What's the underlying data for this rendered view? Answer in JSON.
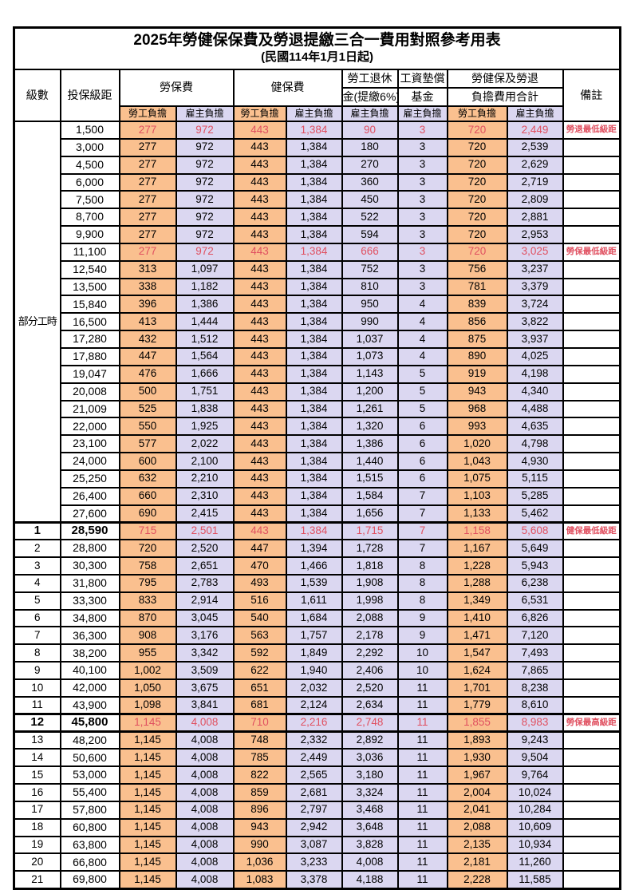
{
  "title": {
    "line1": "2025年勞健保保費及勞退提繳三合一費用對照參考用表",
    "line2": "(民國114年1月1日起)"
  },
  "header": {
    "level": "級數",
    "bracket": "投保級距",
    "labor_fee": "勞保費",
    "health_fee": "健保費",
    "pension_line1": "勞工退休",
    "pension_line2": "金(提繳6%)",
    "wage_fund_line1": "工資墊償",
    "wage_fund_line2": "基金",
    "total_line1": "勞健保及勞退",
    "total_line2": "負擔費用合計",
    "remark": "備註",
    "employee": "勞工負擔",
    "employer": "雇主負擔"
  },
  "part_time_label": "部分工時",
  "colors": {
    "employee_bg": "#FAC08F",
    "employer_bg": "#DBD7F1",
    "highlight_text": "#E05060"
  },
  "rows": [
    {
      "level": "",
      "bracket": "1,500",
      "values": [
        "277",
        "972",
        "443",
        "1,384",
        "90",
        "3",
        "720",
        "2,449"
      ],
      "note": "勞退最低級距",
      "highlight": true,
      "bold": false,
      "thick_top": false,
      "thick_bottom": false
    },
    {
      "level": "",
      "bracket": "3,000",
      "values": [
        "277",
        "972",
        "443",
        "1,384",
        "180",
        "3",
        "720",
        "2,539"
      ],
      "note": "",
      "highlight": false,
      "bold": false,
      "thick_top": false,
      "thick_bottom": false
    },
    {
      "level": "",
      "bracket": "4,500",
      "values": [
        "277",
        "972",
        "443",
        "1,384",
        "270",
        "3",
        "720",
        "2,629"
      ],
      "note": "",
      "highlight": false,
      "bold": false,
      "thick_top": false,
      "thick_bottom": false
    },
    {
      "level": "",
      "bracket": "6,000",
      "values": [
        "277",
        "972",
        "443",
        "1,384",
        "360",
        "3",
        "720",
        "2,719"
      ],
      "note": "",
      "highlight": false,
      "bold": false,
      "thick_top": false,
      "thick_bottom": false
    },
    {
      "level": "",
      "bracket": "7,500",
      "values": [
        "277",
        "972",
        "443",
        "1,384",
        "450",
        "3",
        "720",
        "2,809"
      ],
      "note": "",
      "highlight": false,
      "bold": false,
      "thick_top": false,
      "thick_bottom": false
    },
    {
      "level": "",
      "bracket": "8,700",
      "values": [
        "277",
        "972",
        "443",
        "1,384",
        "522",
        "3",
        "720",
        "2,881"
      ],
      "note": "",
      "highlight": false,
      "bold": false,
      "thick_top": false,
      "thick_bottom": false
    },
    {
      "level": "",
      "bracket": "9,900",
      "values": [
        "277",
        "972",
        "443",
        "1,384",
        "594",
        "3",
        "720",
        "2,953"
      ],
      "note": "",
      "highlight": false,
      "bold": false,
      "thick_top": false,
      "thick_bottom": false
    },
    {
      "level": "",
      "bracket": "11,100",
      "values": [
        "277",
        "972",
        "443",
        "1,384",
        "666",
        "3",
        "720",
        "3,025"
      ],
      "note": "勞保最低級距",
      "highlight": true,
      "bold": false,
      "thick_top": false,
      "thick_bottom": false
    },
    {
      "level": "",
      "bracket": "12,540",
      "values": [
        "313",
        "1,097",
        "443",
        "1,384",
        "752",
        "3",
        "756",
        "3,237"
      ],
      "note": "",
      "highlight": false,
      "bold": false,
      "thick_top": false,
      "thick_bottom": false
    },
    {
      "level": "",
      "bracket": "13,500",
      "values": [
        "338",
        "1,182",
        "443",
        "1,384",
        "810",
        "3",
        "781",
        "3,379"
      ],
      "note": "",
      "highlight": false,
      "bold": false,
      "thick_top": false,
      "thick_bottom": false
    },
    {
      "level": "",
      "bracket": "15,840",
      "values": [
        "396",
        "1,386",
        "443",
        "1,384",
        "950",
        "4",
        "839",
        "3,724"
      ],
      "note": "",
      "highlight": false,
      "bold": false,
      "thick_top": false,
      "thick_bottom": false
    },
    {
      "level": "",
      "bracket": "16,500",
      "values": [
        "413",
        "1,444",
        "443",
        "1,384",
        "990",
        "4",
        "856",
        "3,822"
      ],
      "note": "",
      "highlight": false,
      "bold": false,
      "thick_top": false,
      "thick_bottom": false
    },
    {
      "level": "",
      "bracket": "17,280",
      "values": [
        "432",
        "1,512",
        "443",
        "1,384",
        "1,037",
        "4",
        "875",
        "3,937"
      ],
      "note": "",
      "highlight": false,
      "bold": false,
      "thick_top": false,
      "thick_bottom": false
    },
    {
      "level": "",
      "bracket": "17,880",
      "values": [
        "447",
        "1,564",
        "443",
        "1,384",
        "1,073",
        "4",
        "890",
        "4,025"
      ],
      "note": "",
      "highlight": false,
      "bold": false,
      "thick_top": false,
      "thick_bottom": false
    },
    {
      "level": "",
      "bracket": "19,047",
      "values": [
        "476",
        "1,666",
        "443",
        "1,384",
        "1,143",
        "5",
        "919",
        "4,198"
      ],
      "note": "",
      "highlight": false,
      "bold": false,
      "thick_top": false,
      "thick_bottom": false
    },
    {
      "level": "",
      "bracket": "20,008",
      "values": [
        "500",
        "1,751",
        "443",
        "1,384",
        "1,200",
        "5",
        "943",
        "4,340"
      ],
      "note": "",
      "highlight": false,
      "bold": false,
      "thick_top": false,
      "thick_bottom": false
    },
    {
      "level": "",
      "bracket": "21,009",
      "values": [
        "525",
        "1,838",
        "443",
        "1,384",
        "1,261",
        "5",
        "968",
        "4,488"
      ],
      "note": "",
      "highlight": false,
      "bold": false,
      "thick_top": false,
      "thick_bottom": false
    },
    {
      "level": "",
      "bracket": "22,000",
      "values": [
        "550",
        "1,925",
        "443",
        "1,384",
        "1,320",
        "6",
        "993",
        "4,635"
      ],
      "note": "",
      "highlight": false,
      "bold": false,
      "thick_top": false,
      "thick_bottom": false
    },
    {
      "level": "",
      "bracket": "23,100",
      "values": [
        "577",
        "2,022",
        "443",
        "1,384",
        "1,386",
        "6",
        "1,020",
        "4,798"
      ],
      "note": "",
      "highlight": false,
      "bold": false,
      "thick_top": false,
      "thick_bottom": false
    },
    {
      "level": "",
      "bracket": "24,000",
      "values": [
        "600",
        "2,100",
        "443",
        "1,384",
        "1,440",
        "6",
        "1,043",
        "4,930"
      ],
      "note": "",
      "highlight": false,
      "bold": false,
      "thick_top": false,
      "thick_bottom": false
    },
    {
      "level": "",
      "bracket": "25,250",
      "values": [
        "632",
        "2,210",
        "443",
        "1,384",
        "1,515",
        "6",
        "1,075",
        "5,115"
      ],
      "note": "",
      "highlight": false,
      "bold": false,
      "thick_top": false,
      "thick_bottom": false
    },
    {
      "level": "",
      "bracket": "26,400",
      "values": [
        "660",
        "2,310",
        "443",
        "1,384",
        "1,584",
        "7",
        "1,103",
        "5,285"
      ],
      "note": "",
      "highlight": false,
      "bold": false,
      "thick_top": false,
      "thick_bottom": false
    },
    {
      "level": "",
      "bracket": "27,600",
      "values": [
        "690",
        "2,415",
        "443",
        "1,384",
        "1,656",
        "7",
        "1,133",
        "5,462"
      ],
      "note": "",
      "highlight": false,
      "bold": false,
      "thick_top": false,
      "thick_bottom": false
    },
    {
      "level": "1",
      "bracket": "28,590",
      "values": [
        "715",
        "2,501",
        "443",
        "1,384",
        "1,715",
        "7",
        "1,158",
        "5,608"
      ],
      "note": "健保最低級距",
      "highlight": true,
      "bold": true,
      "thick_top": true,
      "thick_bottom": false
    },
    {
      "level": "2",
      "bracket": "28,800",
      "values": [
        "720",
        "2,520",
        "447",
        "1,394",
        "1,728",
        "7",
        "1,167",
        "5,649"
      ],
      "note": "",
      "highlight": false,
      "bold": false,
      "thick_top": false,
      "thick_bottom": false
    },
    {
      "level": "3",
      "bracket": "30,300",
      "values": [
        "758",
        "2,651",
        "470",
        "1,466",
        "1,818",
        "8",
        "1,228",
        "5,943"
      ],
      "note": "",
      "highlight": false,
      "bold": false,
      "thick_top": false,
      "thick_bottom": false
    },
    {
      "level": "4",
      "bracket": "31,800",
      "values": [
        "795",
        "2,783",
        "493",
        "1,539",
        "1,908",
        "8",
        "1,288",
        "6,238"
      ],
      "note": "",
      "highlight": false,
      "bold": false,
      "thick_top": false,
      "thick_bottom": false
    },
    {
      "level": "5",
      "bracket": "33,300",
      "values": [
        "833",
        "2,914",
        "516",
        "1,611",
        "1,998",
        "8",
        "1,349",
        "6,531"
      ],
      "note": "",
      "highlight": false,
      "bold": false,
      "thick_top": false,
      "thick_bottom": false
    },
    {
      "level": "6",
      "bracket": "34,800",
      "values": [
        "870",
        "3,045",
        "540",
        "1,684",
        "2,088",
        "9",
        "1,410",
        "6,826"
      ],
      "note": "",
      "highlight": false,
      "bold": false,
      "thick_top": false,
      "thick_bottom": false
    },
    {
      "level": "7",
      "bracket": "36,300",
      "values": [
        "908",
        "3,176",
        "563",
        "1,757",
        "2,178",
        "9",
        "1,471",
        "7,120"
      ],
      "note": "",
      "highlight": false,
      "bold": false,
      "thick_top": false,
      "thick_bottom": false
    },
    {
      "level": "8",
      "bracket": "38,200",
      "values": [
        "955",
        "3,342",
        "592",
        "1,849",
        "2,292",
        "10",
        "1,547",
        "7,493"
      ],
      "note": "",
      "highlight": false,
      "bold": false,
      "thick_top": false,
      "thick_bottom": false
    },
    {
      "level": "9",
      "bracket": "40,100",
      "values": [
        "1,002",
        "3,509",
        "622",
        "1,940",
        "2,406",
        "10",
        "1,624",
        "7,865"
      ],
      "note": "",
      "highlight": false,
      "bold": false,
      "thick_top": false,
      "thick_bottom": false
    },
    {
      "level": "10",
      "bracket": "42,000",
      "values": [
        "1,050",
        "3,675",
        "651",
        "2,032",
        "2,520",
        "11",
        "1,701",
        "8,238"
      ],
      "note": "",
      "highlight": false,
      "bold": false,
      "thick_top": false,
      "thick_bottom": false
    },
    {
      "level": "11",
      "bracket": "43,900",
      "values": [
        "1,098",
        "3,841",
        "681",
        "2,124",
        "2,634",
        "11",
        "1,779",
        "8,610"
      ],
      "note": "",
      "highlight": false,
      "bold": false,
      "thick_top": false,
      "thick_bottom": false
    },
    {
      "level": "12",
      "bracket": "45,800",
      "values": [
        "1,145",
        "4,008",
        "710",
        "2,216",
        "2,748",
        "11",
        "1,855",
        "8,983"
      ],
      "note": "勞保最高級距",
      "highlight": true,
      "bold": true,
      "thick_top": true,
      "thick_bottom": true
    },
    {
      "level": "13",
      "bracket": "48,200",
      "values": [
        "1,145",
        "4,008",
        "748",
        "2,332",
        "2,892",
        "11",
        "1,893",
        "9,243"
      ],
      "note": "",
      "highlight": false,
      "bold": false,
      "thick_top": false,
      "thick_bottom": false
    },
    {
      "level": "14",
      "bracket": "50,600",
      "values": [
        "1,145",
        "4,008",
        "785",
        "2,449",
        "3,036",
        "11",
        "1,930",
        "9,504"
      ],
      "note": "",
      "highlight": false,
      "bold": false,
      "thick_top": false,
      "thick_bottom": false
    },
    {
      "level": "15",
      "bracket": "53,000",
      "values": [
        "1,145",
        "4,008",
        "822",
        "2,565",
        "3,180",
        "11",
        "1,967",
        "9,764"
      ],
      "note": "",
      "highlight": false,
      "bold": false,
      "thick_top": false,
      "thick_bottom": false
    },
    {
      "level": "16",
      "bracket": "55,400",
      "values": [
        "1,145",
        "4,008",
        "859",
        "2,681",
        "3,324",
        "11",
        "2,004",
        "10,024"
      ],
      "note": "",
      "highlight": false,
      "bold": false,
      "thick_top": false,
      "thick_bottom": false
    },
    {
      "level": "17",
      "bracket": "57,800",
      "values": [
        "1,145",
        "4,008",
        "896",
        "2,797",
        "3,468",
        "11",
        "2,041",
        "10,284"
      ],
      "note": "",
      "highlight": false,
      "bold": false,
      "thick_top": false,
      "thick_bottom": false
    },
    {
      "level": "18",
      "bracket": "60,800",
      "values": [
        "1,145",
        "4,008",
        "943",
        "2,942",
        "3,648",
        "11",
        "2,088",
        "10,609"
      ],
      "note": "",
      "highlight": false,
      "bold": false,
      "thick_top": false,
      "thick_bottom": false
    },
    {
      "level": "19",
      "bracket": "63,800",
      "values": [
        "1,145",
        "4,008",
        "990",
        "3,087",
        "3,828",
        "11",
        "2,135",
        "10,934"
      ],
      "note": "",
      "highlight": false,
      "bold": false,
      "thick_top": false,
      "thick_bottom": false
    },
    {
      "level": "20",
      "bracket": "66,800",
      "values": [
        "1,145",
        "4,008",
        "1,036",
        "3,233",
        "4,008",
        "11",
        "2,181",
        "11,260"
      ],
      "note": "",
      "highlight": false,
      "bold": false,
      "thick_top": false,
      "thick_bottom": false
    },
    {
      "level": "21",
      "bracket": "69,800",
      "values": [
        "1,145",
        "4,008",
        "1,083",
        "3,378",
        "4,188",
        "11",
        "2,228",
        "11,585"
      ],
      "note": "",
      "highlight": false,
      "bold": false,
      "thick_top": false,
      "thick_bottom": false
    }
  ]
}
